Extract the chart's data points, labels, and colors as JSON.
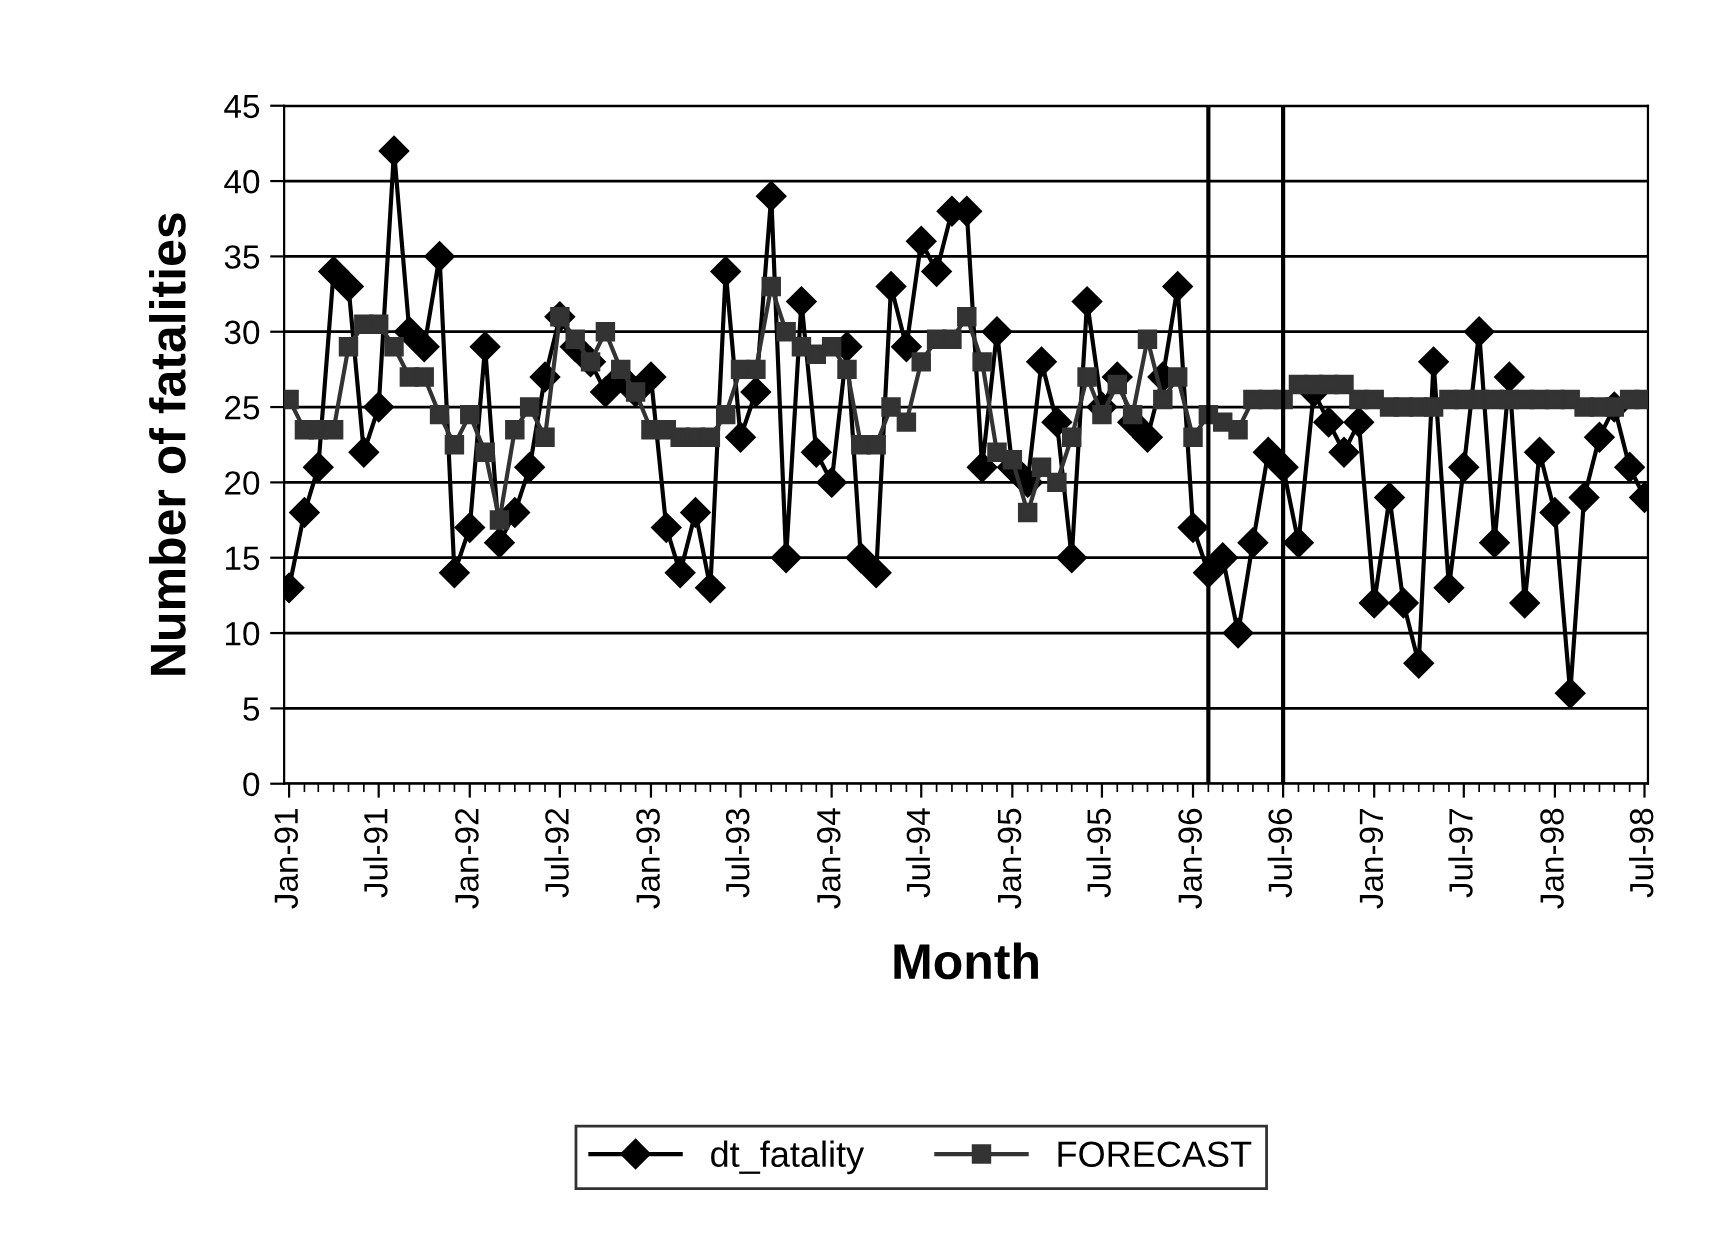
{
  "chart_data": {
    "type": "line",
    "xlabel": "Month",
    "ylabel": "Number of fatalities",
    "x": [
      "1991-01",
      "1991-02",
      "1991-03",
      "1991-04",
      "1991-05",
      "1991-06",
      "1991-07",
      "1991-08",
      "1991-09",
      "1991-10",
      "1991-11",
      "1991-12",
      "1992-01",
      "1992-02",
      "1992-03",
      "1992-04",
      "1992-05",
      "1992-06",
      "1992-07",
      "1992-08",
      "1992-09",
      "1992-10",
      "1992-11",
      "1992-12",
      "1993-01",
      "1993-02",
      "1993-03",
      "1993-04",
      "1993-05",
      "1993-06",
      "1993-07",
      "1993-08",
      "1993-09",
      "1993-10",
      "1993-11",
      "1993-12",
      "1994-01",
      "1994-02",
      "1994-03",
      "1994-04",
      "1994-05",
      "1994-06",
      "1994-07",
      "1994-08",
      "1994-09",
      "1994-10",
      "1994-11",
      "1994-12",
      "1995-01",
      "1995-02",
      "1995-03",
      "1995-04",
      "1995-05",
      "1995-06",
      "1995-07",
      "1995-08",
      "1995-09",
      "1995-10",
      "1995-11",
      "1995-12",
      "1996-01",
      "1996-02",
      "1996-03",
      "1996-04",
      "1996-05",
      "1996-06",
      "1996-07",
      "1996-08",
      "1996-09",
      "1996-10",
      "1996-11",
      "1996-12",
      "1997-01",
      "1997-02",
      "1997-03",
      "1997-04",
      "1997-05",
      "1997-06",
      "1997-07",
      "1997-08",
      "1997-09",
      "1997-10",
      "1997-11",
      "1997-12",
      "1998-01",
      "1998-02",
      "1998-03",
      "1998-04",
      "1998-05",
      "1998-06",
      "1998-07"
    ],
    "series": [
      {
        "name": "dt_fatality",
        "color": "#000000",
        "marker": "diamond",
        "values": [
          13,
          18,
          21,
          34,
          33,
          22,
          25,
          42,
          30,
          29,
          35,
          14,
          17,
          29,
          16,
          18,
          21,
          27,
          31,
          29,
          28,
          26,
          27,
          26,
          27,
          17,
          14,
          18,
          13,
          34,
          23,
          26,
          39,
          15,
          32,
          22,
          20,
          29,
          15,
          14,
          33,
          29,
          36,
          34,
          38,
          38,
          21,
          30,
          21,
          20,
          28,
          24,
          15,
          32,
          25,
          27,
          24,
          23,
          27,
          33,
          17,
          14,
          15,
          10,
          16,
          22,
          21,
          16,
          26,
          24,
          22,
          24,
          12,
          19,
          12,
          8,
          28,
          13,
          21,
          30,
          16,
          27,
          12,
          22,
          18,
          6,
          19,
          23,
          25,
          21,
          19
        ]
      },
      {
        "name": "FORECAST",
        "color": "#333333",
        "marker": "square",
        "values": [
          25.5,
          23.5,
          23.5,
          23.5,
          29,
          30.5,
          30.5,
          29,
          27,
          27,
          24.5,
          22.5,
          24.5,
          22,
          17.5,
          23.5,
          25,
          23,
          31,
          29.5,
          28,
          30,
          27.5,
          26,
          23.5,
          23.5,
          23,
          23,
          23,
          24.5,
          27.5,
          27.5,
          33,
          30,
          29,
          28.5,
          29,
          27.5,
          22.5,
          22.5,
          25,
          24,
          28,
          29.5,
          29.5,
          31,
          28,
          22,
          21.5,
          18,
          21,
          20,
          23,
          27,
          24.5,
          26.5,
          24.5,
          29.5,
          25.5,
          27,
          23,
          24.5,
          24,
          23.5,
          25.5,
          25.5,
          25.5,
          26.5,
          26.5,
          26.5,
          26.5,
          25.5,
          25.5,
          25,
          25,
          25,
          25,
          25.5,
          25.5,
          25.5,
          25.5,
          25.5,
          25.5,
          25.5,
          25.5,
          25.5,
          25,
          25,
          25,
          25.5,
          25.5
        ]
      }
    ],
    "xlim": [
      "1990-12-22",
      "1998-07-08"
    ],
    "xticks": [
      {
        "value": "1991-01",
        "label": "Jan-91"
      },
      {
        "value": "1991-07",
        "label": "Jul-91"
      },
      {
        "value": "1992-01",
        "label": "Jan-92"
      },
      {
        "value": "1992-07",
        "label": "Jul-92"
      },
      {
        "value": "1993-01",
        "label": "Jan-93"
      },
      {
        "value": "1993-07",
        "label": "Jul-93"
      },
      {
        "value": "1994-01",
        "label": "Jan-94"
      },
      {
        "value": "1994-07",
        "label": "Jul-94"
      },
      {
        "value": "1995-01",
        "label": "Jan-95"
      },
      {
        "value": "1995-07",
        "label": "Jul-95"
      },
      {
        "value": "1996-01",
        "label": "Jan-96"
      },
      {
        "value": "1996-07",
        "label": "Jul-96"
      },
      {
        "value": "1997-01",
        "label": "Jan-97"
      },
      {
        "value": "1997-07",
        "label": "Jul-97"
      },
      {
        "value": "1998-01",
        "label": "Jan-98"
      },
      {
        "value": "1998-07",
        "label": "Jul-98"
      }
    ],
    "ylim": [
      0,
      45
    ],
    "yticks": [
      0,
      5,
      10,
      15,
      20,
      25,
      30,
      35,
      40,
      45
    ],
    "ref_lines": [
      {
        "axis": "x",
        "value": "1996-02",
        "color": "#000000"
      },
      {
        "axis": "x",
        "value": "1996-07",
        "color": "#000000"
      }
    ],
    "grid": "y",
    "legend": "bottom",
    "line_style": "solid"
  }
}
